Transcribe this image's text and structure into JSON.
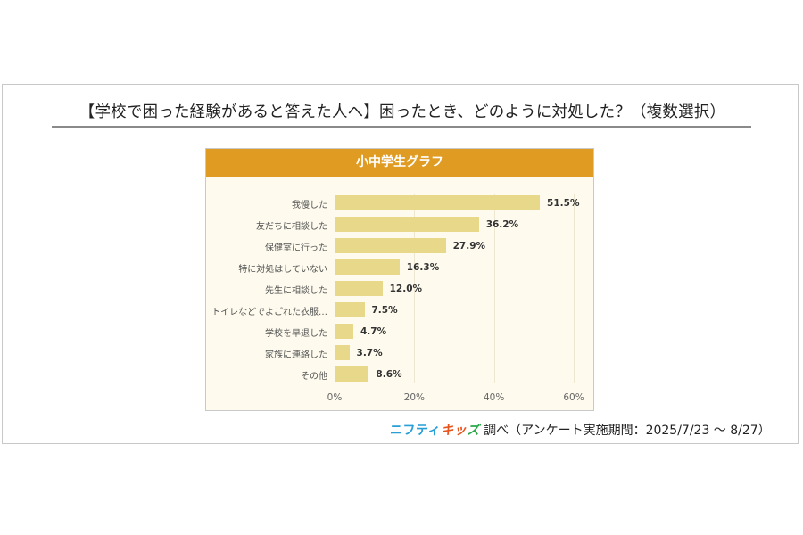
{
  "title": "【学校で困った経験があると答えた人へ】困ったとき、どのように対処した？（複数選択）",
  "panel": {
    "header": "小中学生グラフ"
  },
  "source": {
    "brand_part1": "ニフティ",
    "brand_part2_a": "キッ",
    "brand_part2_b": "ズ",
    "text": "調べ（アンケート実施期間：2025/7/23 ～ 8/27）"
  },
  "colors": {
    "header": "#e09b22",
    "bar": "#e8d98a",
    "panel_bg": "#fefbee"
  },
  "chart_data": {
    "type": "bar",
    "orientation": "horizontal",
    "title": "小中学生グラフ",
    "categories": [
      "我慢した",
      "友だちに相談した",
      "保健室に行った",
      "特に対処はしていない",
      "先生に相談した",
      "トイレなどでよごれた衣服…",
      "学校を早退した",
      "家族に連絡した",
      "その他"
    ],
    "values": [
      51.5,
      36.2,
      27.9,
      16.3,
      12.0,
      7.5,
      4.7,
      3.7,
      8.6
    ],
    "value_labels": [
      "51.5%",
      "36.2%",
      "27.9%",
      "16.3%",
      "12.0%",
      "7.5%",
      "4.7%",
      "3.7%",
      "8.6%"
    ],
    "xlim": [
      0,
      60
    ],
    "xticks": [
      "0%",
      "20%",
      "40%",
      "60%"
    ],
    "xlabel": "",
    "ylabel": "",
    "grid": true,
    "legend": null
  }
}
